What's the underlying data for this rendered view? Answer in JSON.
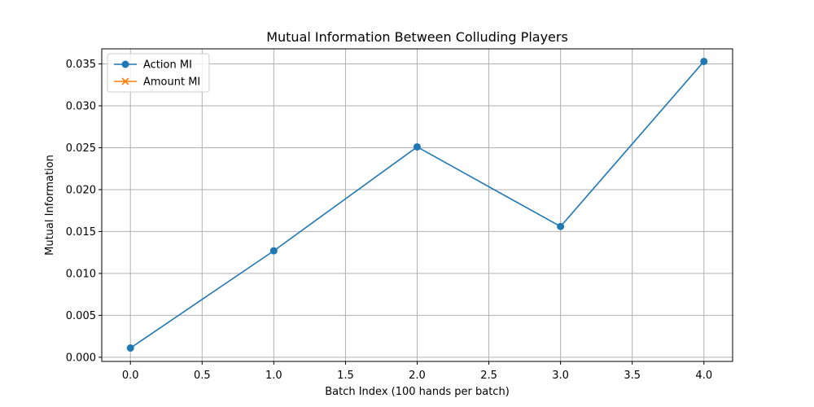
{
  "chart_data": {
    "type": "line",
    "title": "Mutual Information Between Colluding Players",
    "xlabel": "Batch Index (100 hands per batch)",
    "ylabel": "Mutual Information",
    "xlim": [
      -0.2,
      4.2
    ],
    "ylim": [
      -0.0005,
      0.0368
    ],
    "xticks": [
      0.0,
      0.5,
      1.0,
      1.5,
      2.0,
      2.5,
      3.0,
      3.5,
      4.0
    ],
    "xtick_labels": [
      "0.0",
      "0.5",
      "1.0",
      "1.5",
      "2.0",
      "2.5",
      "3.0",
      "3.5",
      "4.0"
    ],
    "yticks": [
      0.0,
      0.005,
      0.01,
      0.015,
      0.02,
      0.025,
      0.03,
      0.035
    ],
    "ytick_labels": [
      "0.000",
      "0.005",
      "0.010",
      "0.015",
      "0.020",
      "0.025",
      "0.030",
      "0.035"
    ],
    "grid": true,
    "legend_position": "top-left",
    "series": [
      {
        "name": "Action MI",
        "color": "#1f77b4",
        "marker": "circle",
        "x": [
          0,
          1,
          2,
          3,
          4
        ],
        "values": [
          0.0011,
          0.0127,
          0.0251,
          0.0156,
          0.0353
        ]
      },
      {
        "name": "Amount MI",
        "color": "#ff7f0e",
        "marker": "x",
        "x": [],
        "values": []
      }
    ]
  }
}
